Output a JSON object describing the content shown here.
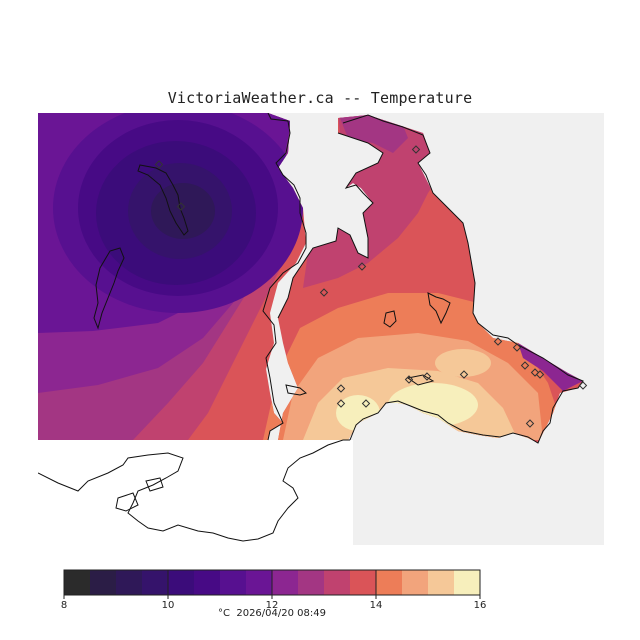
{
  "title": "VictoriaWeather.ca -- Temperature",
  "legend": {
    "min": 8,
    "max": 16,
    "ticks": [
      "8",
      "10",
      "12",
      "14",
      "16"
    ],
    "unit": "°C",
    "timestamp": "2026/04/20 08:49",
    "bins": [
      "#2b2b2b",
      "#2b1d46",
      "#2f1858",
      "#35136b",
      "#3b0c7a",
      "#470a85",
      "#571090",
      "#6a1595",
      "#8c2691",
      "#a33683",
      "#c0426f",
      "#da5458",
      "#ed7d58",
      "#f2a47c",
      "#f5c898",
      "#f7efbc"
    ]
  },
  "colors": {
    "sea": "#f0f0f0",
    "land_unfilled": "#ffffff",
    "coast": "#111111"
  },
  "stations": {
    "count": 22,
    "marker": "diamond-icon"
  }
}
